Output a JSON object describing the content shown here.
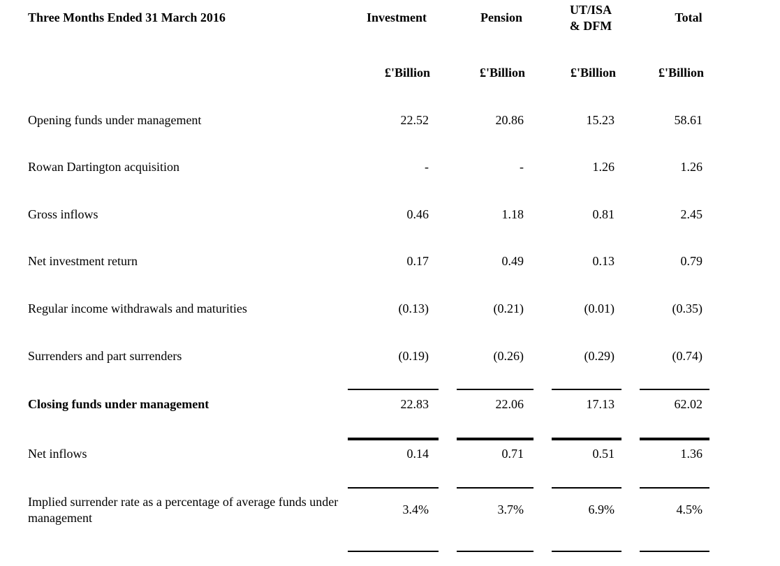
{
  "header": {
    "title": "Three Months Ended 31 March 2016",
    "columns": [
      "Investment",
      "Pension",
      "UT/ISA\n& DFM",
      "Total"
    ],
    "units": [
      "£'Billion",
      "£'Billion",
      "£'Billion",
      "£'Billion"
    ]
  },
  "table": {
    "rows": [
      [
        "Opening funds under management",
        "22.52",
        "20.86",
        "15.23",
        "58.61"
      ],
      [
        "Rowan Dartington acquisition",
        "-",
        "-",
        "1.26",
        "1.26"
      ],
      [
        "Gross inflows",
        "0.46",
        "1.18",
        "0.81",
        "2.45"
      ],
      [
        "Net investment return",
        "0.17",
        "0.49",
        "0.13",
        "0.79"
      ],
      [
        "Regular income withdrawals and maturities",
        "(0.13)",
        "(0.21)",
        "(0.01)",
        "(0.35)"
      ],
      [
        "Surrenders and part surrenders",
        "(0.19)",
        "(0.26)",
        "(0.29)",
        "(0.74)"
      ],
      [
        "Closing funds under management",
        "22.83",
        "22.06",
        "17.13",
        "62.02"
      ],
      [
        "Net inflows",
        "0.14",
        "0.71",
        "0.51",
        "1.36"
      ],
      [
        "Implied surrender rate as a percentage of average funds under management",
        "3.4%",
        "3.7%",
        "6.9%",
        "4.5%"
      ]
    ]
  }
}
